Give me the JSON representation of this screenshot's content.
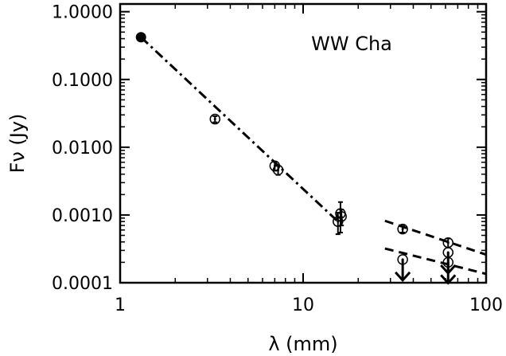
{
  "chart_data": {
    "type": "scatter",
    "xscale": "log",
    "yscale": "log",
    "xlim": [
      1,
      100
    ],
    "ylim": [
      0.0001,
      1.3
    ],
    "xlabel": "λ (mm)",
    "ylabel": "Fν (Jy)",
    "annotation": "WW Cha",
    "grid": false,
    "xticks": [
      {
        "value": 1,
        "label": "1"
      },
      {
        "value": 10,
        "label": "10"
      },
      {
        "value": 100,
        "label": "100"
      }
    ],
    "yticks": [
      {
        "value": 0.0001,
        "label": "0.0001"
      },
      {
        "value": 0.001,
        "label": "0.0010"
      },
      {
        "value": 0.01,
        "label": "0.0100"
      },
      {
        "value": 0.1,
        "label": "0.1000"
      },
      {
        "value": 1,
        "label": "1.0000"
      }
    ],
    "filled_points": [
      {
        "x": 1.3,
        "y": 0.42
      }
    ],
    "detections": [
      {
        "x": 3.3,
        "y": 0.026,
        "err_lo": 0.0233,
        "err_hi": 0.0287
      },
      {
        "x": 7.0,
        "y": 0.0053,
        "err_lo": 0.0045,
        "err_hi": 0.0061
      },
      {
        "x": 7.3,
        "y": 0.0046,
        "err_lo": 0.0039,
        "err_hi": 0.0053
      },
      {
        "x": 15.5,
        "y": 0.0008,
        "err_lo": 0.00052,
        "err_hi": 0.00108
      },
      {
        "x": 16.0,
        "y": 0.00105,
        "err_lo": 0.00055,
        "err_hi": 0.00155
      },
      {
        "x": 16.2,
        "y": 0.00095,
        "err_lo": 0.0007,
        "err_hi": 0.0012
      },
      {
        "x": 35,
        "y": 0.00062,
        "err_lo": 0.00055,
        "err_hi": 0.00069
      },
      {
        "x": 62,
        "y": 0.00039,
        "err_lo": 0.00033,
        "err_hi": 0.00045
      }
    ],
    "upper_limits": [
      {
        "x": 35,
        "y": 0.00022
      },
      {
        "x": 62,
        "y": 0.0002
      },
      {
        "x": 62,
        "y": 0.00028
      }
    ],
    "fit_lines": [
      {
        "style": "dash-dot",
        "points": [
          [
            1.3,
            0.42
          ],
          [
            15.5,
            0.0008
          ]
        ]
      },
      {
        "style": "dashed",
        "points": [
          [
            28,
            0.00082
          ],
          [
            100,
            0.00026
          ]
        ]
      },
      {
        "style": "dashed",
        "points": [
          [
            28,
            0.00032
          ],
          [
            100,
            0.000135
          ]
        ]
      }
    ]
  }
}
